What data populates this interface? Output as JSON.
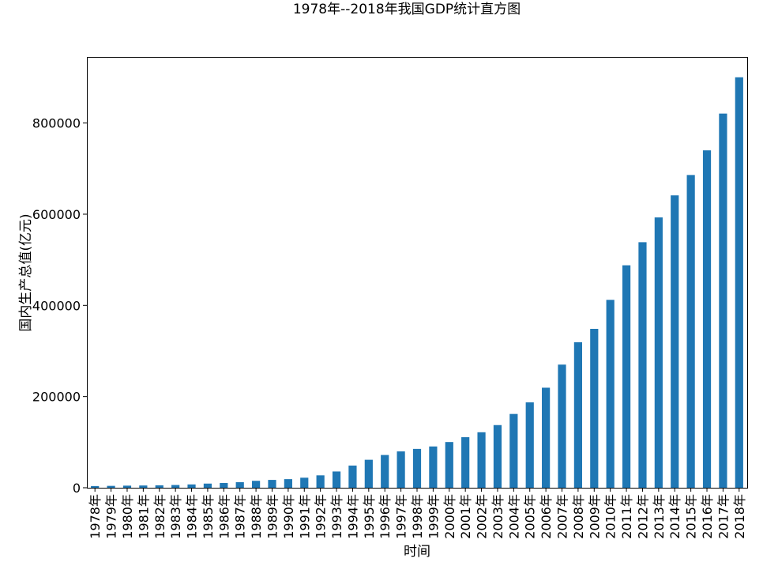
{
  "chart_data": {
    "type": "bar",
    "title": "1978年--2018年我国GDP统计直方图",
    "xlabel": "时间",
    "ylabel": "国内生产总值(亿元)",
    "ylim": [
      0,
      945000
    ],
    "yticks": [
      0,
      200000,
      400000,
      600000,
      800000
    ],
    "ytick_labels": [
      "0",
      "200000",
      "400000",
      "600000",
      "800000"
    ],
    "grid": false,
    "bar_color": "#1f77b4",
    "categories": [
      "1978年",
      "1979年",
      "1980年",
      "1981年",
      "1982年",
      "1983年",
      "1984年",
      "1985年",
      "1986年",
      "1987年",
      "1988年",
      "1989年",
      "1990年",
      "1991年",
      "1992年",
      "1993年",
      "1994年",
      "1995年",
      "1996年",
      "1997年",
      "1998年",
      "1999年",
      "2000年",
      "2001年",
      "2002年",
      "2003年",
      "2004年",
      "2005年",
      "2006年",
      "2007年",
      "2008年",
      "2009年",
      "2010年",
      "2011年",
      "2012年",
      "2013年",
      "2014年",
      "2015年",
      "2016年",
      "2017年",
      "2018年"
    ],
    "values": [
      3679,
      4101,
      4588,
      4936,
      5373,
      6021,
      7279,
      9099,
      10376,
      12175,
      15180,
      17180,
      18873,
      22006,
      27195,
      35673,
      48638,
      61340,
      71814,
      79715,
      85196,
      90564,
      100280,
      110863,
      121717,
      137422,
      161840,
      187319,
      219439,
      270092,
      319245,
      348518,
      412119,
      487940,
      538580,
      592963,
      641281,
      685993,
      740061,
      820754,
      900310
    ]
  }
}
